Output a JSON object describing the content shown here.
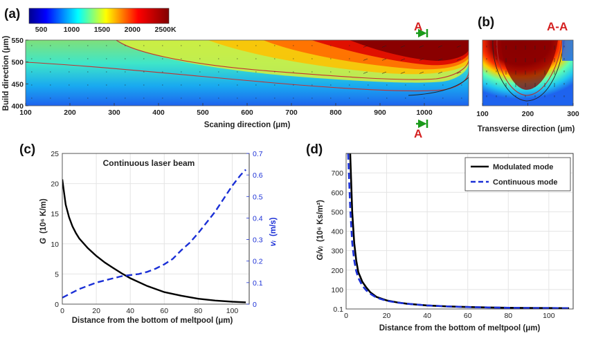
{
  "chart_data": [
    {
      "panel": "(a)",
      "type": "heatmap",
      "colorbar": {
        "ticks": [
          "500",
          "1000",
          "1500",
          "2000",
          "2500"
        ],
        "unit": "K",
        "range": [
          300,
          2600
        ]
      },
      "xlabel": "Scaning direction (μm)",
      "ylabel": "Build direction (μm)",
      "xticks": [
        "100",
        "200",
        "300",
        "400",
        "500",
        "600",
        "700",
        "800",
        "900",
        "1000"
      ],
      "yticks": [
        "400",
        "450",
        "500",
        "550"
      ],
      "xlim": [
        100,
        1100
      ],
      "ylim": [
        400,
        550
      ],
      "section_marker": "A"
    },
    {
      "panel": "(b)",
      "type": "heatmap",
      "title": "A-A",
      "xlabel": "Transverse direction (μm)",
      "xticks": [
        "100",
        "200",
        "300"
      ],
      "xlim": [
        100,
        300
      ]
    },
    {
      "panel": "(c)",
      "type": "line",
      "annotation": "Continuous laser beam",
      "xlabel": "Distance from the bottom of meltpool (μm)",
      "ylabel_left": "G",
      "ylabel_left_unit": "(10⁶ K/m)",
      "ylabel_right": "vᵢ",
      "ylabel_right_unit": "(m/s)",
      "xticks": [
        "0",
        "20",
        "40",
        "60",
        "80",
        "100"
      ],
      "yticks_left": [
        "0",
        "5",
        "10",
        "15",
        "20",
        "25"
      ],
      "yticks_right": [
        "0",
        "0.1",
        "0.2",
        "0.3",
        "0.4",
        "0.5",
        "0.6",
        "0.7"
      ],
      "xlim": [
        0,
        110
      ],
      "ylim_left": [
        0,
        25
      ],
      "ylim_right": [
        0,
        0.7
      ],
      "series": [
        {
          "axis": "left",
          "color": "#000000",
          "style": "solid",
          "x": [
            0,
            2,
            4,
            6,
            8,
            10,
            15,
            20,
            25,
            30,
            35,
            40,
            50,
            60,
            70,
            80,
            90,
            100,
            108
          ],
          "values": [
            20.7,
            16.5,
            14.4,
            12.9,
            11.8,
            10.9,
            9.3,
            8.0,
            6.9,
            6.0,
            5.1,
            4.3,
            3.0,
            2.0,
            1.4,
            0.9,
            0.6,
            0.4,
            0.3
          ]
        },
        {
          "axis": "right",
          "color": "#1a2fd6",
          "style": "dashed",
          "x": [
            0,
            5,
            10,
            15,
            20,
            25,
            30,
            35,
            40,
            45,
            50,
            55,
            60,
            65,
            70,
            75,
            80,
            85,
            90,
            95,
            100,
            105,
            108
          ],
          "values": [
            0.03,
            0.05,
            0.07,
            0.085,
            0.1,
            0.11,
            0.12,
            0.13,
            0.135,
            0.14,
            0.15,
            0.165,
            0.185,
            0.21,
            0.25,
            0.285,
            0.33,
            0.38,
            0.43,
            0.49,
            0.55,
            0.6,
            0.625
          ]
        }
      ]
    },
    {
      "panel": "(d)",
      "type": "line",
      "xlabel": "Distance from the bottom of meltpool (μm)",
      "ylabel": "G/vᵢ",
      "ylabel_unit": "(10⁶ Ks/m²)",
      "xticks": [
        "0",
        "20",
        "40",
        "60",
        "80",
        "100"
      ],
      "yticks": [
        "0.1",
        "100",
        "200",
        "300",
        "400",
        "500",
        "600",
        "700"
      ],
      "xlim": [
        0,
        112
      ],
      "ylim": [
        0.1,
        800
      ],
      "legend_placement": "top-right",
      "series": [
        {
          "name": "Modulated mode",
          "color": "#000000",
          "style": "solid",
          "x": [
            2,
            3,
            4,
            5,
            6,
            8,
            10,
            12,
            15,
            20,
            25,
            30,
            40,
            50,
            60,
            70,
            80,
            90,
            100,
            110
          ],
          "values": [
            800,
            500,
            340,
            250,
            190,
            140,
            110,
            85,
            62,
            44,
            34,
            27,
            18,
            13,
            10,
            8,
            6,
            5,
            4.5,
            4
          ]
        },
        {
          "name": "Continuous mode",
          "color": "#1a2fd6",
          "style": "dashed",
          "x": [
            1,
            2,
            3,
            4,
            5,
            6,
            8,
            10,
            12,
            15,
            20,
            25,
            30,
            40,
            50,
            60,
            70,
            80,
            90,
            100,
            110
          ],
          "values": [
            800,
            520,
            340,
            250,
            195,
            160,
            120,
            95,
            78,
            58,
            42,
            33,
            27,
            18,
            13,
            10,
            8,
            6,
            5,
            4.5,
            4
          ]
        }
      ]
    }
  ]
}
